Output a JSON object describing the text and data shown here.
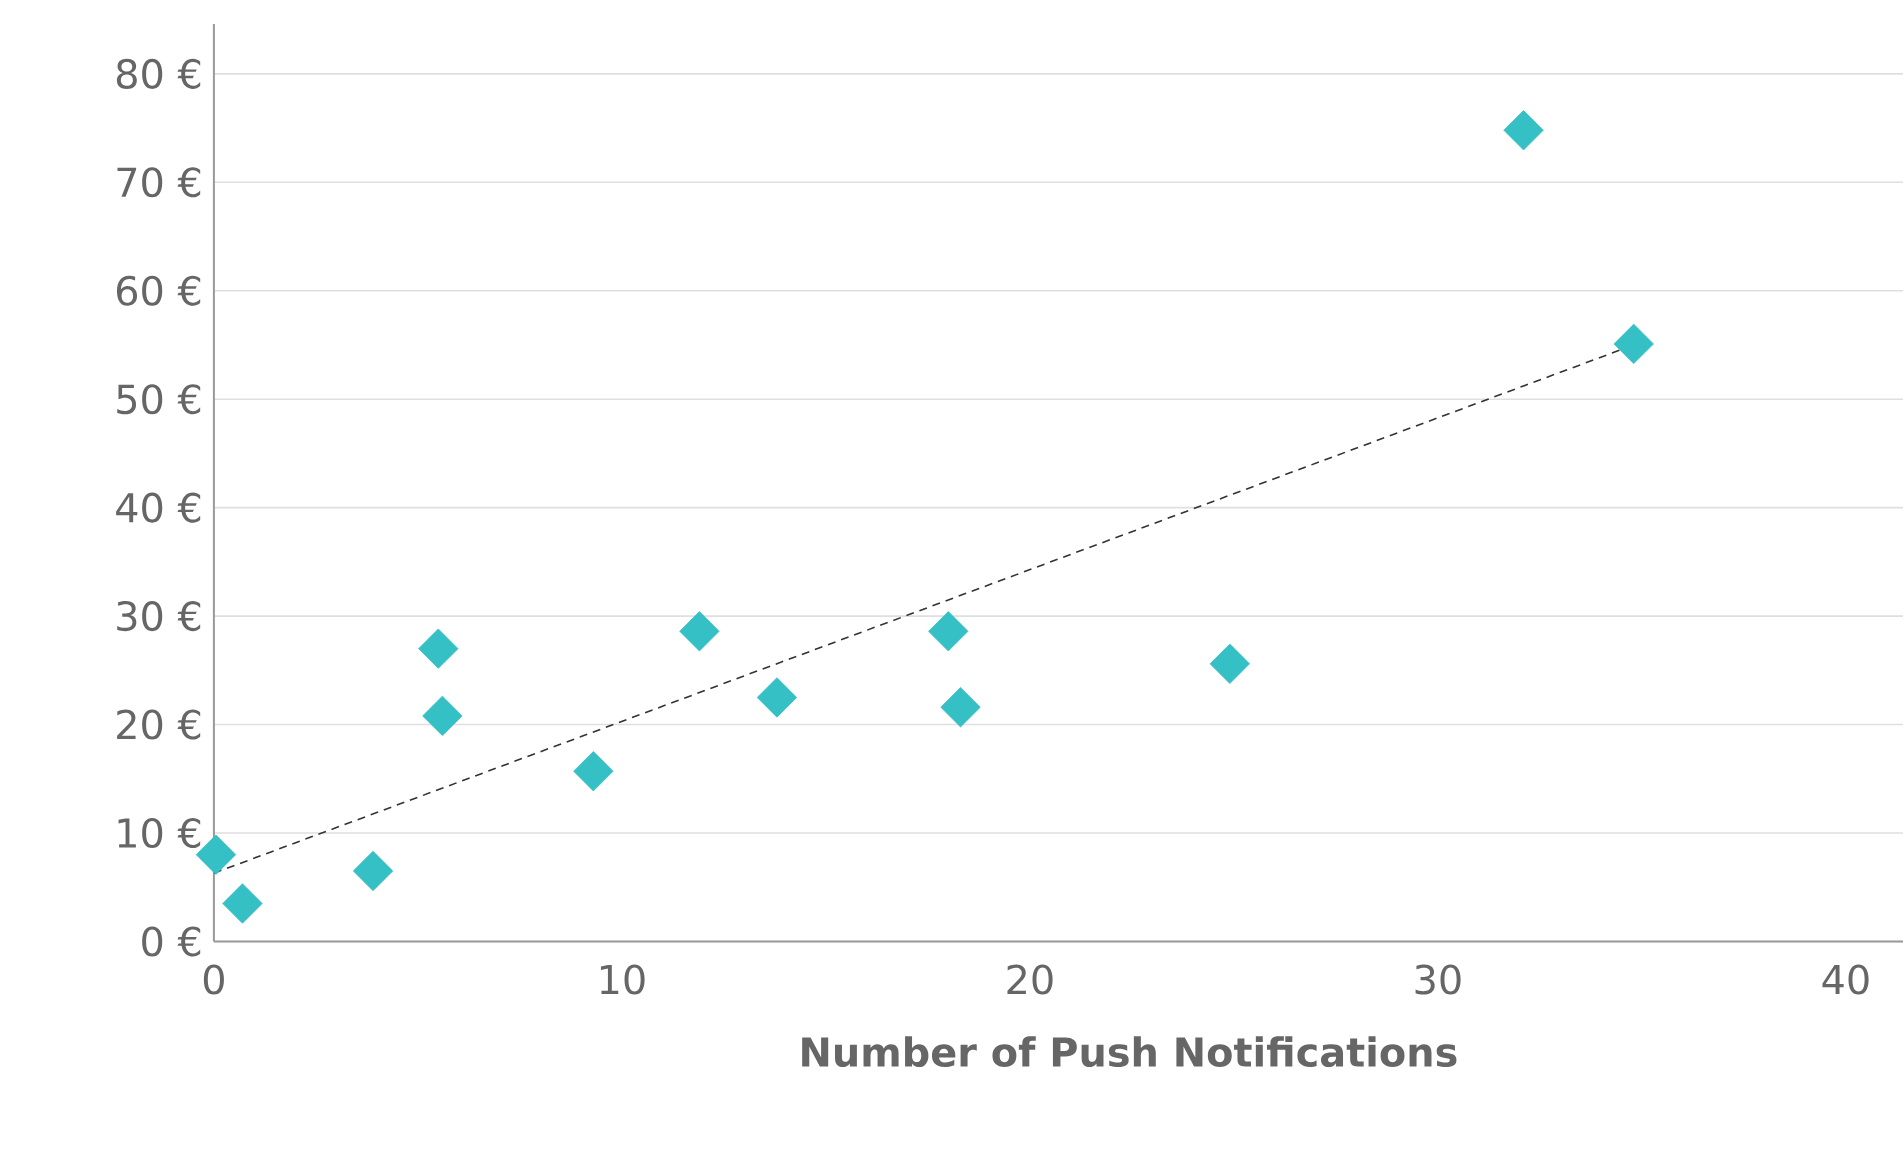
{
  "chart_data": {
    "type": "scatter",
    "xlabel": "Number of Push Notifications",
    "series": [
      {
        "color": "#35c0c5",
        "marker": "diamond",
        "x": [
          0.05,
          0.7,
          3.9,
          5.5,
          5.6,
          9.3,
          11.9,
          13.8,
          18.0,
          18.3,
          24.9,
          32.1,
          34.8
        ],
        "values": [
          8,
          3.5,
          6.5,
          27,
          20.8,
          15.7,
          28.6,
          22.5,
          28.6,
          21.6,
          25.6,
          74.8,
          55.1
        ]
      },
      {
        "type": "line",
        "color": "#333333",
        "line_style": "dashed",
        "marker": "none",
        "x": [
          0,
          34.8
        ],
        "values": [
          6.3,
          55
        ]
      }
    ],
    "xlim": [
      0,
      41.4
    ],
    "ylim": [
      0,
      84.6
    ],
    "xticks": [
      0,
      10,
      20,
      30,
      40
    ],
    "yticks": [
      {
        "value": 0,
        "label": "0 €"
      },
      {
        "value": 10,
        "label": "10 €"
      },
      {
        "value": 20,
        "label": "20 €"
      },
      {
        "value": 30,
        "label": "30 €"
      },
      {
        "value": 40,
        "label": "40 €"
      },
      {
        "value": 50,
        "label": "50 €"
      },
      {
        "value": 60,
        "label": "60 €"
      },
      {
        "value": 70,
        "label": "70 €"
      },
      {
        "value": 80,
        "label": "80 €"
      }
    ],
    "grid": "y"
  }
}
